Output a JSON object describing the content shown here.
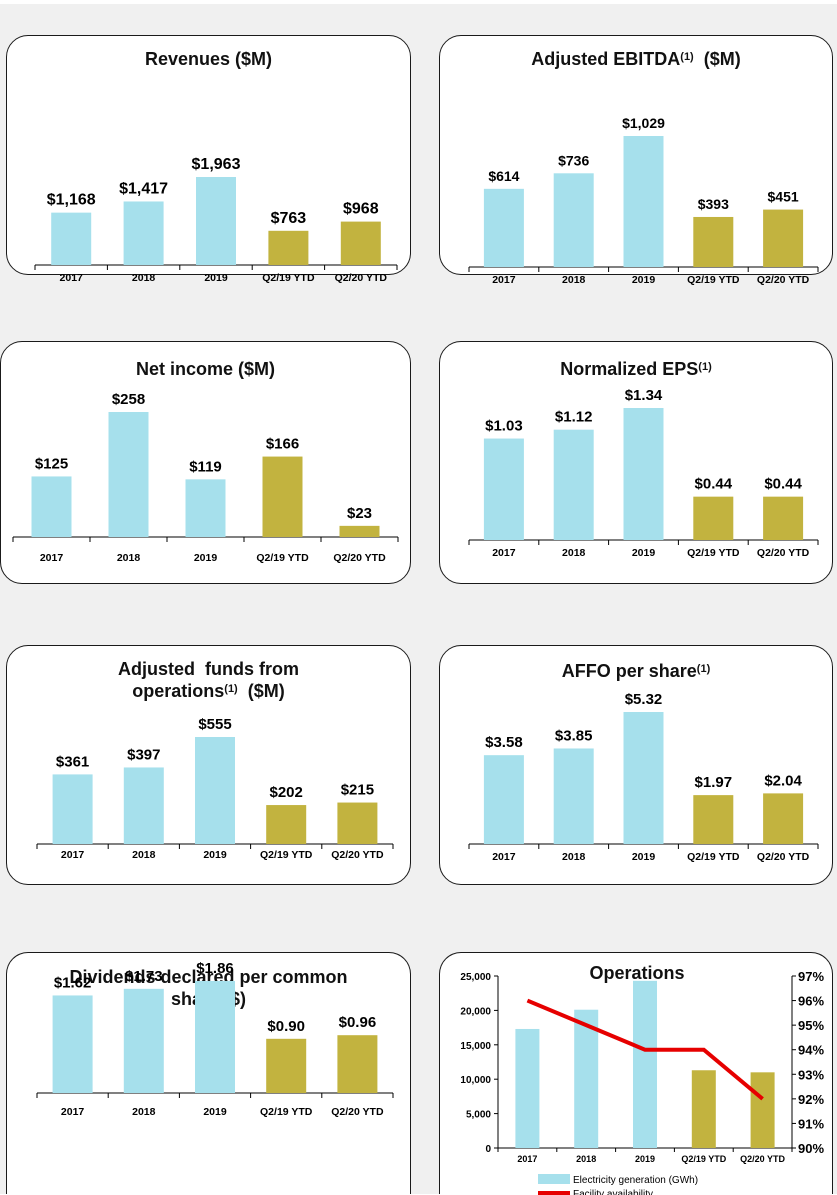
{
  "colors": {
    "historical": "#a6e0ec",
    "ytd": "#c2b33f",
    "line": "#e60000",
    "axis": "#000000",
    "panel_bg": "#f0f0f0"
  },
  "categories": [
    "2017",
    "2018",
    "2019",
    "Q2/19 YTD",
    "Q2/20 YTD"
  ],
  "chart_data": [
    {
      "id": "revenues",
      "type": "bar",
      "title": "Revenues ($M)",
      "title_sup": "",
      "categories": [
        "2017",
        "2018",
        "2019",
        "Q2/19 YTD",
        "Q2/20 YTD"
      ],
      "values": [
        1168,
        1417,
        1963,
        763,
        968
      ],
      "labels": [
        "$1,168",
        "$1,417",
        "$1,963",
        "$763",
        "$968"
      ],
      "colors": [
        "historical",
        "historical",
        "historical",
        "ytd",
        "ytd"
      ]
    },
    {
      "id": "ebitda",
      "type": "bar",
      "title": "Adjusted  EBITDA",
      "title_sup": "(1)",
      "title_suffix": "  ($M)",
      "categories": [
        "2017",
        "2018",
        "2019",
        "Q2/19 YTD",
        "Q2/20 YTD"
      ],
      "values": [
        614,
        736,
        1029,
        393,
        451
      ],
      "labels": [
        "$614",
        "$736",
        "$1,029",
        "$393",
        "$451"
      ],
      "colors": [
        "historical",
        "historical",
        "historical",
        "ytd",
        "ytd"
      ]
    },
    {
      "id": "net_income",
      "type": "bar",
      "title": "Net income ($M)",
      "title_sup": "",
      "categories": [
        "2017",
        "2018",
        "2019",
        "Q2/19 YTD",
        "Q2/20 YTD"
      ],
      "values": [
        125,
        258,
        119,
        166,
        23
      ],
      "labels": [
        "$125",
        "$258",
        "$119",
        "$166",
        "$23"
      ],
      "colors": [
        "historical",
        "historical",
        "historical",
        "ytd",
        "ytd"
      ]
    },
    {
      "id": "eps",
      "type": "bar",
      "title": "Normalized EPS",
      "title_sup": "(1)",
      "categories": [
        "2017",
        "2018",
        "2019",
        "Q2/19 YTD",
        "Q2/20 YTD"
      ],
      "values": [
        1.03,
        1.12,
        1.34,
        0.44,
        0.44
      ],
      "labels": [
        "$1.03",
        "$1.12",
        "$1.34",
        "$0.44",
        "$0.44"
      ],
      "colors": [
        "historical",
        "historical",
        "historical",
        "ytd",
        "ytd"
      ]
    },
    {
      "id": "affo",
      "type": "bar",
      "title": "Adjusted  funds from",
      "title_line2": "operations",
      "title_sup": "(1)",
      "title_suffix": "  ($M)",
      "categories": [
        "2017",
        "2018",
        "2019",
        "Q2/19 YTD",
        "Q2/20 YTD"
      ],
      "values": [
        361,
        397,
        555,
        202,
        215
      ],
      "labels": [
        "$361",
        "$397",
        "$555",
        "$202",
        "$215"
      ],
      "colors": [
        "historical",
        "historical",
        "historical",
        "ytd",
        "ytd"
      ]
    },
    {
      "id": "affo_per_share",
      "type": "bar",
      "title": "AFFO per share",
      "title_sup": "(1)",
      "categories": [
        "2017",
        "2018",
        "2019",
        "Q2/19 YTD",
        "Q2/20 YTD"
      ],
      "values": [
        3.58,
        3.85,
        5.32,
        1.97,
        2.04
      ],
      "labels": [
        "$3.58",
        "$3.85",
        "$5.32",
        "$1.97",
        "$2.04"
      ],
      "colors": [
        "historical",
        "historical",
        "historical",
        "ytd",
        "ytd"
      ]
    },
    {
      "id": "dividends",
      "type": "bar",
      "title": "Dividends declared per common",
      "title_line2": "share ($)",
      "title_sup": "",
      "categories": [
        "2017",
        "2018",
        "2019",
        "Q2/19 YTD",
        "Q2/20 YTD"
      ],
      "values": [
        1.62,
        1.73,
        1.86,
        0.9,
        0.96
      ],
      "labels": [
        "$1.62",
        "$1.73",
        "$1.86",
        "$0.90",
        "$0.96"
      ],
      "colors": [
        "historical",
        "historical",
        "historical",
        "ytd",
        "ytd"
      ]
    },
    {
      "id": "operations",
      "type": "bar+line",
      "title": "Operations",
      "categories": [
        "2017",
        "2018",
        "2019",
        "Q2/19 YTD",
        "Q2/20 YTD"
      ],
      "bar_series": {
        "name": "Electricity generation (GWh)",
        "values": [
          17300,
          20100,
          24300,
          11300,
          11000
        ]
      },
      "line_series": {
        "name": "Facility availability",
        "values": [
          96,
          95,
          94,
          94,
          92
        ]
      },
      "colors": [
        "historical",
        "historical",
        "historical",
        "ytd",
        "ytd"
      ],
      "y_left": {
        "min": 0,
        "max": 25000,
        "ticks": [
          "0",
          "5,000",
          "10,000",
          "15,000",
          "20,000",
          "25,000"
        ]
      },
      "y_right": {
        "min": 90,
        "max": 97,
        "ticks": [
          "90%",
          "91%",
          "92%",
          "93%",
          "94%",
          "95%",
          "96%",
          "97%"
        ]
      },
      "legend_position": "bottom"
    }
  ]
}
